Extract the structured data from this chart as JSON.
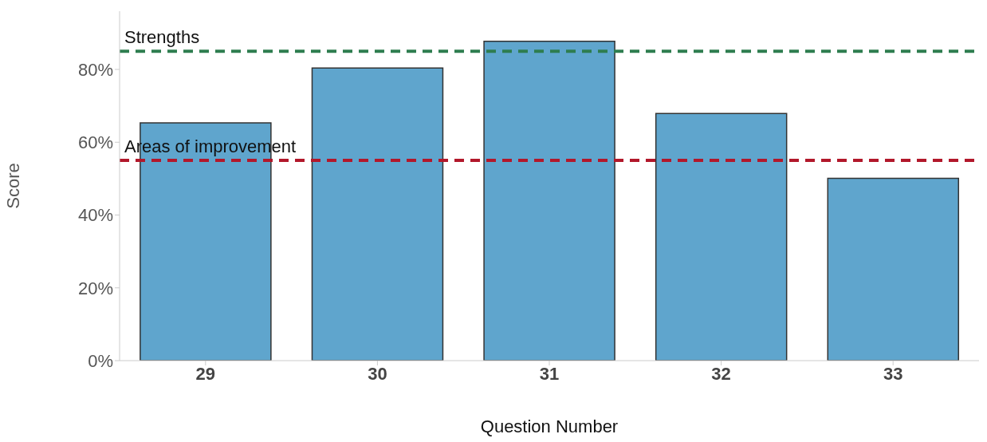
{
  "chart_data": {
    "type": "bar",
    "xlabel": "Question Number",
    "ylabel": "Score",
    "categories": [
      "29",
      "30",
      "31",
      "32",
      "33"
    ],
    "values": [
      65.3,
      80.4,
      87.7,
      67.9,
      50.1
    ],
    "color": "#5fa5cd",
    "ylim": [
      0,
      96
    ],
    "yticks": [
      {
        "value": 0,
        "label": "0%"
      },
      {
        "value": 20,
        "label": "20%"
      },
      {
        "value": 40,
        "label": "40%"
      },
      {
        "value": 60,
        "label": "60%"
      },
      {
        "value": 80,
        "label": "80%"
      }
    ],
    "grid": false,
    "ref_lines": [
      {
        "axis": "y",
        "value": 85,
        "label": "Strengths",
        "color": "#2e7d4f",
        "line_style": "dashed"
      },
      {
        "axis": "y",
        "value": 55,
        "label": "Areas of improvement",
        "color": "#b2182b",
        "line_style": "dashed"
      }
    ]
  }
}
